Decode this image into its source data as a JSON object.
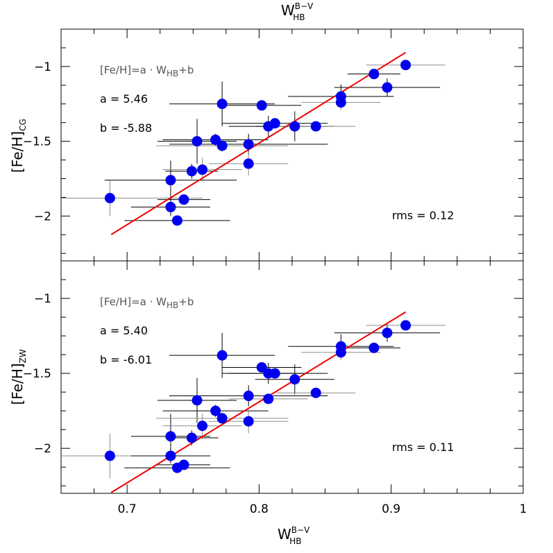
{
  "colors": {
    "point": "#0000ee",
    "fit": "#ee0000",
    "err_dark": "#000000",
    "err_light": "#8c8c8c"
  },
  "x_title": {
    "main": "W",
    "sup": "B−V",
    "sub": "HB"
  },
  "top_title": {
    "main": "W",
    "sup": "B−V",
    "sub": "HB"
  },
  "chart_data": [
    {
      "type": "scatter",
      "ylabel": {
        "main": "[Fe/H]",
        "sub": "CG"
      },
      "formula": {
        "lhs": "[Fe/H]=a · W",
        "sub": "HB",
        "rhs": "+b"
      },
      "a_text": "a = 5.46",
      "b_text": "b = -5.88",
      "rms_text": "rms = 0.12",
      "xlim": [
        0.65,
        1.0
      ],
      "ylim": [
        -2.3,
        -0.75
      ],
      "x_ticks": [
        0.7,
        0.8,
        0.9,
        1.0
      ],
      "y_ticks": [
        {
          "v": -2,
          "label": "−2"
        },
        {
          "v": -1.5,
          "label": "−1.5"
        },
        {
          "v": -1,
          "label": "−1"
        }
      ],
      "fit": {
        "a": 5.46,
        "b": -5.88,
        "x0": 0.688,
        "x1": 0.911
      },
      "points": [
        {
          "x": 0.687,
          "y": -1.88,
          "xe": 0.07,
          "ye": 0.12,
          "c": 1
        },
        {
          "x": 0.733,
          "y": -1.94,
          "xe": 0.03,
          "ye": 0.06,
          "c": 0
        },
        {
          "x": 0.733,
          "y": -1.76,
          "xe": 0.05,
          "ye": 0.13,
          "c": 0
        },
        {
          "x": 0.738,
          "y": -2.03,
          "xe": 0.04,
          "ye": 0.02,
          "c": 0
        },
        {
          "x": 0.743,
          "y": -1.89,
          "xe": 0.02,
          "ye": 0.02,
          "c": 0
        },
        {
          "x": 0.749,
          "y": -1.7,
          "xe": 0.02,
          "ye": 0.05,
          "c": 0
        },
        {
          "x": 0.753,
          "y": -1.5,
          "xe": 0.03,
          "ye": 0.15,
          "c": 0
        },
        {
          "x": 0.757,
          "y": -1.69,
          "xe": 0.03,
          "ye": 0.08,
          "c": 1
        },
        {
          "x": 0.767,
          "y": -1.49,
          "xe": 0.04,
          "ye": 0.04,
          "c": 0
        },
        {
          "x": 0.772,
          "y": -1.25,
          "xe": 0.04,
          "ye": 0.15,
          "c": 0
        },
        {
          "x": 0.772,
          "y": -1.53,
          "xe": 0.05,
          "ye": 0.04,
          "c": 1
        },
        {
          "x": 0.792,
          "y": -1.52,
          "xe": 0.06,
          "ye": 0.07,
          "c": 0
        },
        {
          "x": 0.792,
          "y": -1.65,
          "xe": 0.03,
          "ye": 0.08,
          "c": 1
        },
        {
          "x": 0.802,
          "y": -1.26,
          "xe": 0.03,
          "ye": 0.03,
          "c": 0
        },
        {
          "x": 0.807,
          "y": -1.4,
          "xe": 0.03,
          "ye": 0.07,
          "c": 0
        },
        {
          "x": 0.812,
          "y": -1.38,
          "xe": 0.04,
          "ye": 0.03,
          "c": 0
        },
        {
          "x": 0.827,
          "y": -1.4,
          "xe": 0.03,
          "ye": 0.1,
          "c": 0
        },
        {
          "x": 0.843,
          "y": -1.4,
          "xe": 0.03,
          "ye": 0.03,
          "c": 1
        },
        {
          "x": 0.862,
          "y": -1.2,
          "xe": 0.04,
          "ye": 0.08,
          "c": 0
        },
        {
          "x": 0.862,
          "y": -1.24,
          "xe": 0.03,
          "ye": 0.05,
          "c": 1
        },
        {
          "x": 0.887,
          "y": -1.05,
          "xe": 0.02,
          "ye": 0.03,
          "c": 0
        },
        {
          "x": 0.897,
          "y": -1.14,
          "xe": 0.04,
          "ye": 0.06,
          "c": 0
        },
        {
          "x": 0.911,
          "y": -0.99,
          "xe": 0.03,
          "ye": 0.03,
          "c": 1
        }
      ]
    },
    {
      "type": "scatter",
      "ylabel": {
        "main": "[Fe/H]",
        "sub": "ZW"
      },
      "formula": {
        "lhs": "[Fe/H]=a · W",
        "sub": "HB",
        "rhs": "+b"
      },
      "a_text": "a = 5.40",
      "b_text": "b = -6.01",
      "rms_text": "rms = 0.11",
      "xlim": [
        0.65,
        1.0
      ],
      "ylim": [
        -2.3,
        -0.75
      ],
      "x_ticks": [
        0.7,
        0.8,
        0.9,
        1.0
      ],
      "y_ticks": [
        {
          "v": -2,
          "label": "−2"
        },
        {
          "v": -1.5,
          "label": "−1.5"
        },
        {
          "v": -1,
          "label": "−1"
        }
      ],
      "fit": {
        "a": 5.4,
        "b": -6.01,
        "x0": 0.688,
        "x1": 0.911
      },
      "points": [
        {
          "x": 0.687,
          "y": -2.05,
          "xe": 0.07,
          "ye": 0.15,
          "c": 1
        },
        {
          "x": 0.733,
          "y": -1.92,
          "xe": 0.03,
          "ye": 0.15,
          "c": 0
        },
        {
          "x": 0.733,
          "y": -2.05,
          "xe": 0.03,
          "ye": 0.05,
          "c": 0
        },
        {
          "x": 0.738,
          "y": -2.13,
          "xe": 0.04,
          "ye": 0.02,
          "c": 0
        },
        {
          "x": 0.743,
          "y": -2.11,
          "xe": 0.02,
          "ye": 0.02,
          "c": 0
        },
        {
          "x": 0.749,
          "y": -1.93,
          "xe": 0.02,
          "ye": 0.05,
          "c": 0
        },
        {
          "x": 0.753,
          "y": -1.68,
          "xe": 0.03,
          "ye": 0.15,
          "c": 0
        },
        {
          "x": 0.757,
          "y": -1.85,
          "xe": 0.03,
          "ye": 0.08,
          "c": 1
        },
        {
          "x": 0.767,
          "y": -1.75,
          "xe": 0.04,
          "ye": 0.04,
          "c": 0
        },
        {
          "x": 0.772,
          "y": -1.38,
          "xe": 0.04,
          "ye": 0.15,
          "c": 0
        },
        {
          "x": 0.772,
          "y": -1.8,
          "xe": 0.05,
          "ye": 0.04,
          "c": 1
        },
        {
          "x": 0.792,
          "y": -1.65,
          "xe": 0.06,
          "ye": 0.07,
          "c": 0
        },
        {
          "x": 0.792,
          "y": -1.82,
          "xe": 0.03,
          "ye": 0.08,
          "c": 1
        },
        {
          "x": 0.802,
          "y": -1.46,
          "xe": 0.03,
          "ye": 0.03,
          "c": 0
        },
        {
          "x": 0.807,
          "y": -1.5,
          "xe": 0.03,
          "ye": 0.07,
          "c": 0
        },
        {
          "x": 0.812,
          "y": -1.5,
          "xe": 0.04,
          "ye": 0.03,
          "c": 0
        },
        {
          "x": 0.807,
          "y": -1.67,
          "xe": 0.03,
          "ye": 0.03,
          "c": 1
        },
        {
          "x": 0.827,
          "y": -1.54,
          "xe": 0.03,
          "ye": 0.1,
          "c": 0
        },
        {
          "x": 0.843,
          "y": -1.63,
          "xe": 0.03,
          "ye": 0.03,
          "c": 1
        },
        {
          "x": 0.862,
          "y": -1.32,
          "xe": 0.04,
          "ye": 0.08,
          "c": 0
        },
        {
          "x": 0.862,
          "y": -1.36,
          "xe": 0.03,
          "ye": 0.05,
          "c": 1
        },
        {
          "x": 0.887,
          "y": -1.33,
          "xe": 0.02,
          "ye": 0.03,
          "c": 0
        },
        {
          "x": 0.897,
          "y": -1.23,
          "xe": 0.04,
          "ye": 0.06,
          "c": 0
        },
        {
          "x": 0.911,
          "y": -1.18,
          "xe": 0.03,
          "ye": 0.03,
          "c": 1
        }
      ]
    }
  ]
}
